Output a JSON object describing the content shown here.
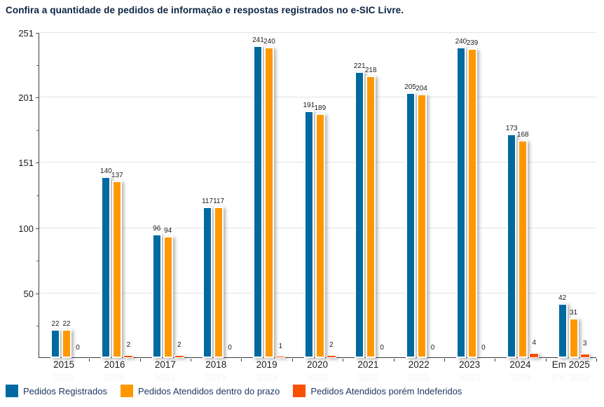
{
  "title": "Confira a quantidade de pedidos de informação e respostas registrados no e-SIC Livre.",
  "colors": {
    "registered": "#0069A0",
    "answered_in_time": "#FF9800",
    "answered_denied": "#FA5002",
    "title_text": "#0a2342",
    "legend_text": "#1f3864",
    "axis": "#3b3b3b",
    "gridline": "#e3e3e3"
  },
  "chart_data": {
    "type": "bar",
    "title": "Confira a quantidade de pedidos de informação e respostas registrados no e-SIC Livre.",
    "categories": [
      "2015",
      "2016",
      "2017",
      "2018",
      "2019",
      "2020",
      "2021",
      "2022",
      "2023",
      "2024",
      "Em 2025"
    ],
    "series": [
      {
        "name": "Pedidos Registrados",
        "color": "#0069A0",
        "values": [
          22,
          140,
          96,
          117,
          241,
          191,
          221,
          205,
          240,
          173,
          42
        ]
      },
      {
        "name": "Pedidos Atendidos dentro do prazo",
        "color": "#FF9800",
        "values": [
          22,
          137,
          94,
          117,
          240,
          189,
          218,
          204,
          239,
          168,
          31
        ]
      },
      {
        "name": "Pedidos Atendidos porém Indeferidos",
        "color": "#FA5002",
        "values": [
          0,
          2,
          2,
          0,
          1,
          2,
          0,
          0,
          0,
          4,
          3
        ]
      }
    ],
    "xlabel": "",
    "ylabel": "",
    "ylim": [
      0,
      251
    ],
    "yticks": [
      50,
      100,
      151,
      201,
      251
    ],
    "grid": true,
    "legend_position": "bottom",
    "data_labels": true
  }
}
